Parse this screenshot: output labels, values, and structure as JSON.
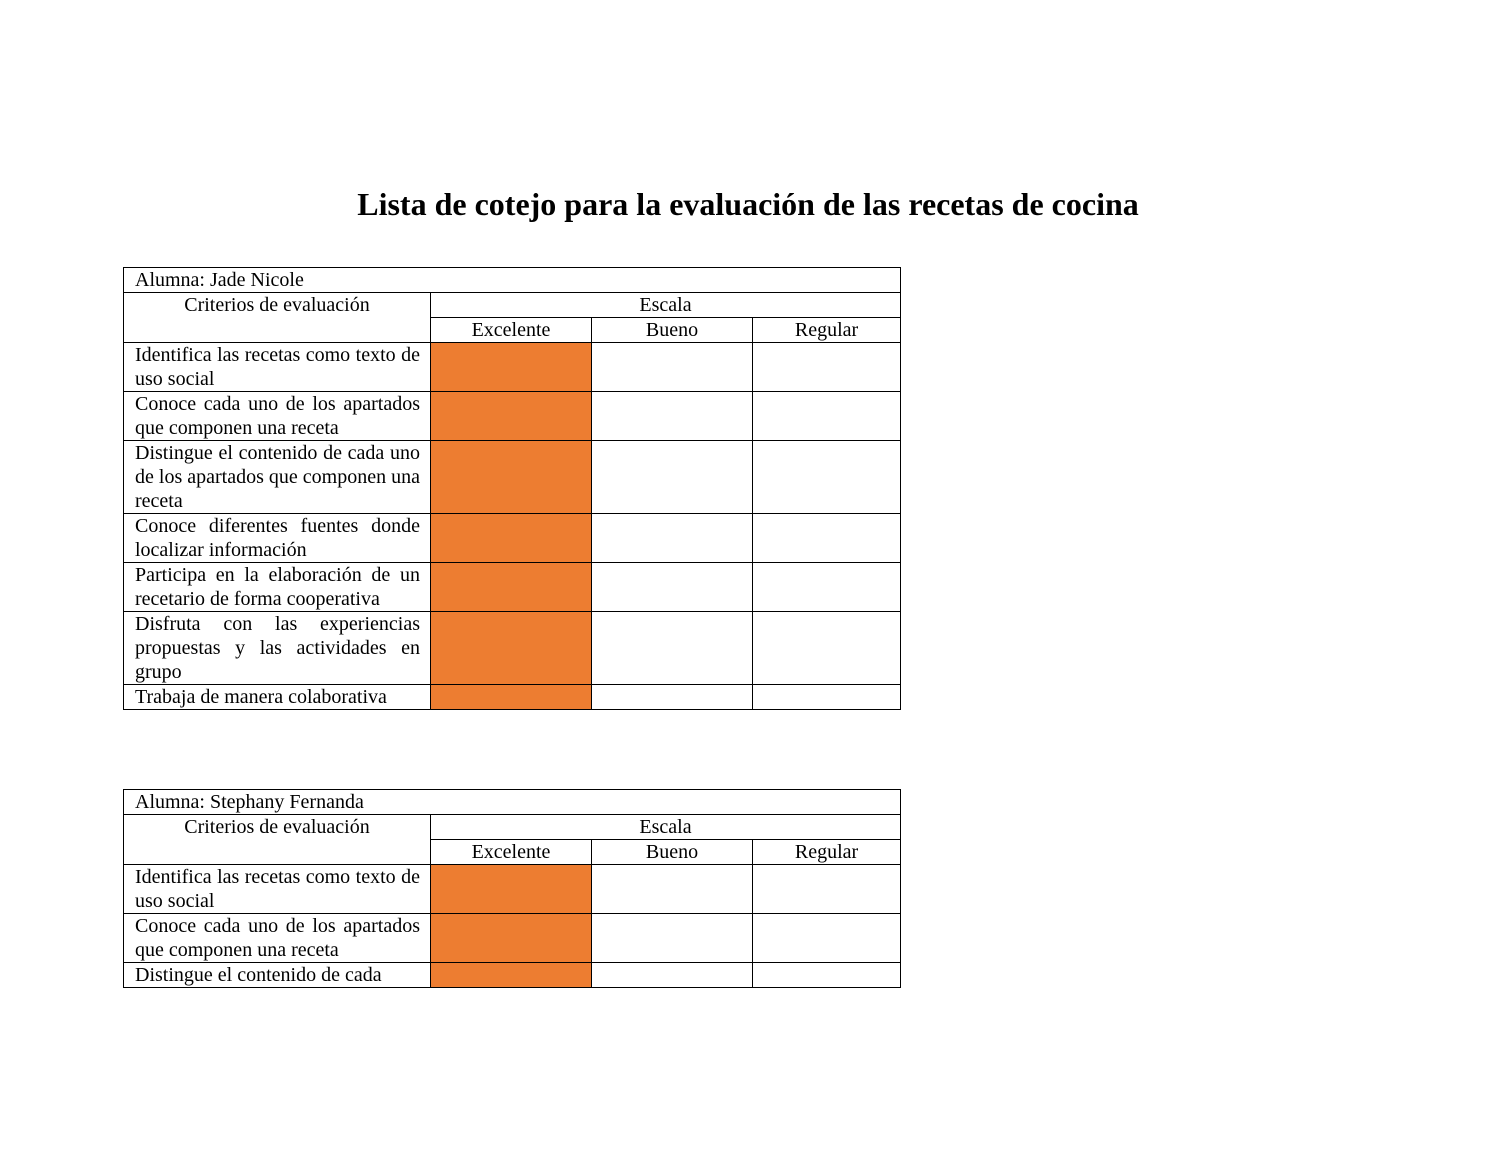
{
  "title": "Lista de cotejo para la evaluación de las recetas de cocina",
  "colors": {
    "selected_fill": "#ED7D31"
  },
  "tables": [
    {
      "student": "Alumna: Jade Nicole",
      "criteria_header": "Criterios de evaluación",
      "scale_header": "Escala",
      "scale_levels": [
        "Excelente",
        "Bueno",
        "Regular"
      ],
      "rows": [
        {
          "criterion": "Identifica las recetas como texto de uso social",
          "selected": "Excelente"
        },
        {
          "criterion": "Conoce cada uno de los apartados que componen una receta",
          "selected": "Excelente"
        },
        {
          "criterion": "Distingue el contenido de cada uno de los apartados que componen una receta",
          "selected": "Excelente"
        },
        {
          "criterion": "Conoce diferentes fuentes donde localizar información",
          "selected": "Excelente"
        },
        {
          "criterion": "Participa en la elaboración de un recetario de forma cooperativa",
          "selected": "Excelente"
        },
        {
          "criterion": "Disfruta con las experiencias propuestas y las actividades en grupo",
          "selected": "Excelente"
        },
        {
          "criterion": "Trabaja de manera colaborativa",
          "selected": "Excelente"
        }
      ]
    },
    {
      "student": "Alumna: Stephany Fernanda",
      "criteria_header": "Criterios de evaluación",
      "scale_header": "Escala",
      "scale_levels": [
        "Excelente",
        "Bueno",
        "Regular"
      ],
      "rows": [
        {
          "criterion": "Identifica las recetas como texto de uso social",
          "selected": "Excelente"
        },
        {
          "criterion": "Conoce cada uno de los apartados que componen una receta",
          "selected": "Excelente"
        },
        {
          "criterion": "Distingue el contenido de cada",
          "selected": "Excelente"
        }
      ]
    }
  ]
}
